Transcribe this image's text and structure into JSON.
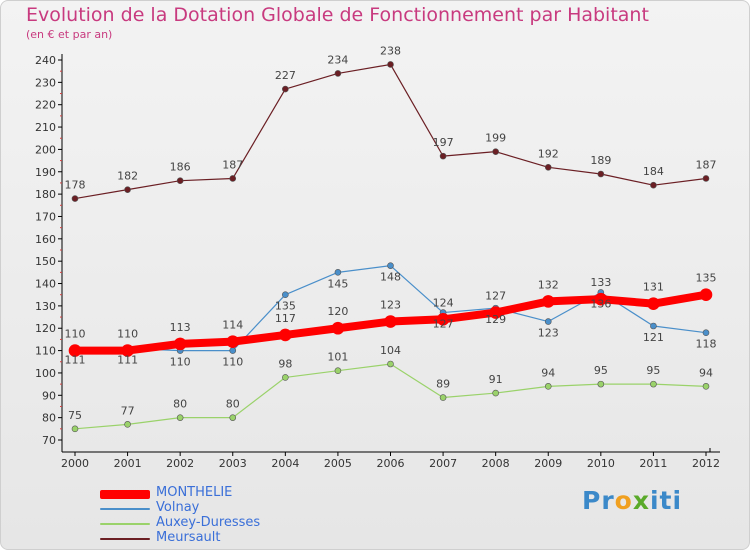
{
  "title": "Evolution de la Dotation Globale de Fonctionnement par Habitant",
  "subtitle": "(en € et par an)",
  "brand": {
    "text": "Proxiti",
    "part1": "Pr",
    "part2": "o",
    "part3": "x",
    "part4": "iti"
  },
  "chart_data": {
    "type": "line",
    "title": "Evolution de la Dotation Globale de Fonctionnement par Habitant",
    "subtitle": "(en € et par an)",
    "xlabel": "",
    "ylabel": "",
    "x": [
      2000,
      2001,
      2002,
      2003,
      2004,
      2005,
      2006,
      2007,
      2008,
      2009,
      2010,
      2011,
      2012
    ],
    "ylim": [
      70,
      240
    ],
    "yticks": [
      70,
      80,
      90,
      100,
      110,
      120,
      130,
      140,
      150,
      160,
      170,
      180,
      190,
      200,
      210,
      220,
      230,
      240
    ],
    "grid": false,
    "legend_position": "bottom-left",
    "series": [
      {
        "name": "Meursault",
        "color": "#6b1f24",
        "values": [
          178,
          182,
          186,
          187,
          227,
          234,
          238,
          197,
          199,
          192,
          189,
          184,
          187
        ]
      },
      {
        "name": "Auxey-Duresses",
        "color": "#9ad26a",
        "values": [
          75,
          77,
          80,
          80,
          98,
          101,
          104,
          89,
          91,
          94,
          95,
          95,
          94
        ]
      },
      {
        "name": "Volnay",
        "color": "#4a8fca",
        "values": [
          111,
          111,
          110,
          110,
          135,
          145,
          148,
          127,
          129,
          123,
          136,
          121,
          118
        ]
      },
      {
        "name": "MONTHELIE",
        "color": "#ff0000",
        "values": [
          110,
          110,
          113,
          114,
          117,
          120,
          123,
          124,
          127,
          132,
          133,
          131,
          135
        ]
      }
    ]
  }
}
